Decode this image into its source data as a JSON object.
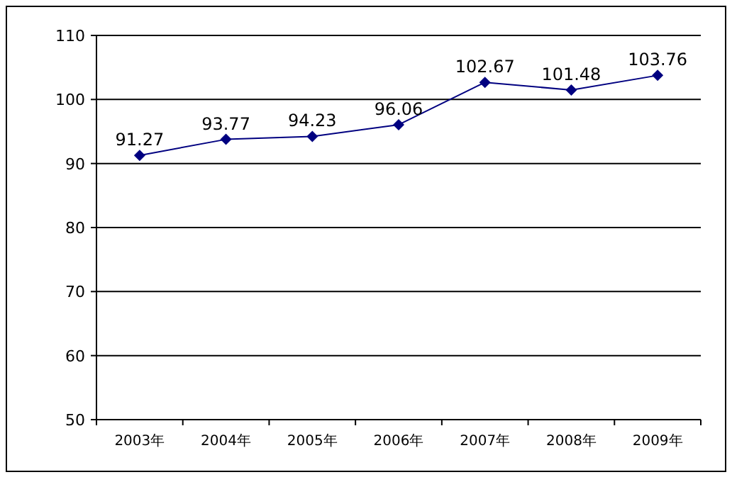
{
  "chart_data": {
    "type": "line",
    "categories": [
      "2003年",
      "2004年",
      "2005年",
      "2006年",
      "2007年",
      "2008年",
      "2009年"
    ],
    "series": [
      {
        "color": "#000080",
        "values": [
          91.27,
          93.77,
          94.23,
          96.06,
          102.67,
          101.48,
          103.76
        ]
      }
    ],
    "ylim": [
      50,
      110
    ],
    "yticks": [
      50,
      60,
      70,
      80,
      90,
      100,
      110
    ],
    "grid": "y",
    "marker": "diamond",
    "line_style": "solid",
    "data_labels": true
  }
}
